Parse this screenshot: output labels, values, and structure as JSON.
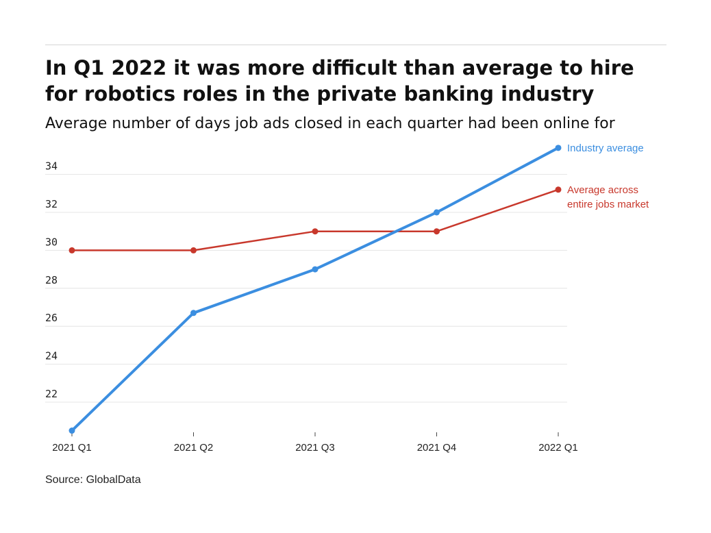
{
  "title": "In Q1 2022 it was more difficult than average to hire for robotics roles in the private banking industry",
  "subtitle": "Average number of days job ads closed in each quarter had been online for",
  "source": "Source: GlobalData",
  "chart_data": {
    "type": "line",
    "categories": [
      "2021 Q1",
      "2021 Q2",
      "2021 Q3",
      "2021 Q4",
      "2022 Q1"
    ],
    "yticks": [
      22,
      24,
      26,
      28,
      30,
      32,
      34
    ],
    "ylim": [
      20.5,
      35.4
    ],
    "grid": true,
    "series": [
      {
        "name": "Industry average",
        "label_lines": [
          "Industry average"
        ],
        "color": "#3b8ee0",
        "values": [
          20.5,
          26.7,
          29.0,
          32.0,
          35.4
        ]
      },
      {
        "name": "Average across entire jobs market",
        "label_lines": [
          "Average across",
          "entire jobs market"
        ],
        "color": "#c8382c",
        "values": [
          30.0,
          30.0,
          31.0,
          31.0,
          33.2
        ]
      }
    ]
  }
}
